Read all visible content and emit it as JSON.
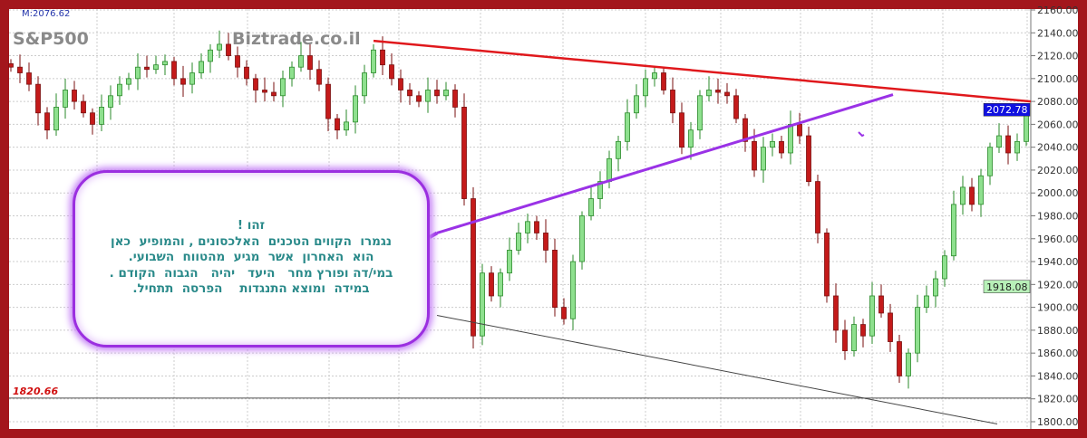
{
  "header": {
    "indicator": "M:2076.62",
    "symbol": "S&P500",
    "watermark": "Biztrade.co.il"
  },
  "callout": {
    "lines": [
      "זהו !",
      "נגמרו  הקווים הטכנים  האלכסונים , והמופיע  כאן",
      "הוא  האחרון  אשר  מגיע  מהטווח  השבועי.",
      "במי/דה ופורץ מחר   היעד   יהיה   הגבוה  הקודם .",
      "במידה  ומוצא התנגדות    הפרסה  תתחיל."
    ]
  },
  "colors": {
    "up": "#3fbf3f",
    "down": "#c41a1a",
    "resistance": "#e0181c",
    "support": "#9a32e6",
    "lower": "#444444",
    "frame": "#a3161c"
  },
  "chart_data": {
    "type": "candlestick",
    "title": "S&P500",
    "ylim": [
      1800,
      2160
    ],
    "yticks": [
      2160,
      2140,
      2120,
      2100,
      2080,
      2060,
      2040,
      2020,
      2000,
      1980,
      1960,
      1940,
      1920,
      1900,
      1880,
      1860,
      1840,
      1820,
      1800
    ],
    "grid": true,
    "closes": [
      2110,
      2105,
      2095,
      2070,
      2055,
      2075,
      2090,
      2080,
      2070,
      2060,
      2075,
      2085,
      2095,
      2100,
      2110,
      2108,
      2112,
      2115,
      2100,
      2095,
      2105,
      2115,
      2125,
      2130,
      2120,
      2110,
      2100,
      2090,
      2088,
      2085,
      2100,
      2110,
      2120,
      2108,
      2095,
      2065,
      2055,
      2062,
      2085,
      2105,
      2125,
      2112,
      2100,
      2090,
      2085,
      2080,
      2090,
      2085,
      2090,
      2075,
      1995,
      1875,
      1930,
      1910,
      1930,
      1950,
      1965,
      1975,
      1965,
      1950,
      1900,
      1890,
      1940,
      1980,
      1995,
      2010,
      2030,
      2045,
      2070,
      2085,
      2100,
      2105,
      2090,
      2070,
      2040,
      2055,
      2085,
      2090,
      2088,
      2085,
      2065,
      2045,
      2020,
      2040,
      2045,
      2035,
      2060,
      2050,
      2010,
      1965,
      1910,
      1880,
      1862,
      1885,
      1875,
      1910,
      1895,
      1870,
      1840,
      1860,
      1900,
      1910,
      1925,
      1945,
      1990,
      2005,
      1990,
      2015,
      2040,
      2050,
      2035,
      2045,
      2072.78
    ],
    "current_price": "2072.78",
    "marker_price": "1918.08",
    "horizontal_level": {
      "value": 1820.66,
      "label": "1820.66"
    },
    "trendlines": [
      {
        "kind": "resistance",
        "from": {
          "bar": 40,
          "price": 2133
        },
        "to": {
          "bar": 112.5,
          "price": 2080
        }
      },
      {
        "kind": "support",
        "from": {
          "bar": 47,
          "price": 1965
        },
        "to": {
          "bar": 97.3,
          "price": 2086
        }
      },
      {
        "kind": "lower",
        "from": {
          "bar": 47,
          "price": 1893
        },
        "to": {
          "bar": 108.8,
          "price": 1798
        }
      }
    ]
  }
}
